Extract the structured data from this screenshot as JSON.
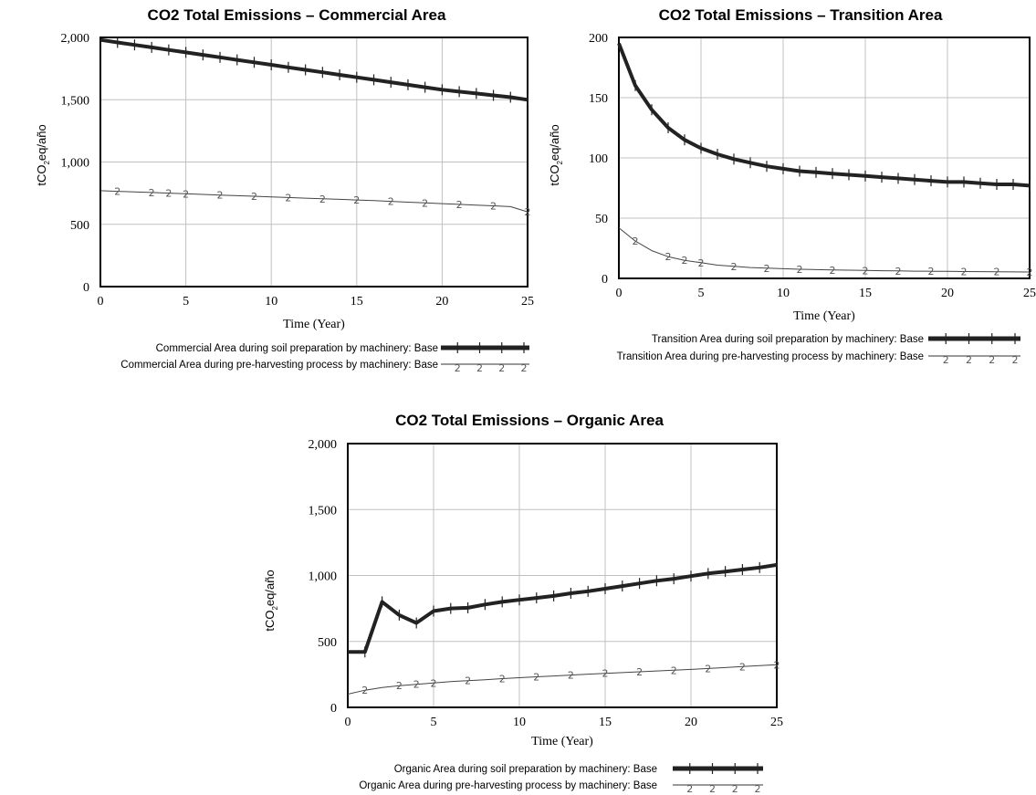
{
  "chart_data": [
    {
      "type": "line",
      "title": "CO2 Total Emissions – Commercial Area",
      "xlabel": "Time (Year)",
      "ylabel": "tCO2eq/año",
      "xlim": [
        0,
        25
      ],
      "ylim": [
        0,
        2000
      ],
      "xticks": [
        "0",
        "5",
        "10",
        "15",
        "20",
        "25"
      ],
      "yticks": [
        "0",
        "500",
        "1,000",
        "1,500",
        "2,000"
      ],
      "grid": true,
      "legend_position": "bottom",
      "x": [
        0,
        1,
        2,
        3,
        4,
        5,
        6,
        7,
        8,
        9,
        10,
        11,
        12,
        13,
        14,
        15,
        16,
        17,
        18,
        19,
        20,
        21,
        22,
        23,
        24,
        25
      ],
      "series": [
        {
          "name": "Commercial Area during soil preparation by machinery: Base",
          "style": "thick-black-cross",
          "values": [
            1980,
            1960,
            1940,
            1920,
            1900,
            1880,
            1860,
            1840,
            1820,
            1800,
            1780,
            1760,
            1740,
            1720,
            1700,
            1680,
            1660,
            1640,
            1620,
            1600,
            1580,
            1565,
            1550,
            1535,
            1520,
            1500
          ]
        },
        {
          "name": "Commercial Area during pre-harvesting process by machinery: Base",
          "style": "thin-gray-2",
          "values": [
            770,
            765,
            760,
            755,
            750,
            745,
            740,
            735,
            730,
            725,
            720,
            715,
            710,
            705,
            700,
            695,
            690,
            684,
            678,
            672,
            666,
            660,
            654,
            648,
            642,
            600
          ]
        }
      ]
    },
    {
      "type": "line",
      "title": "CO2 Total Emissions – Transition Area",
      "xlabel": "Time (Year)",
      "ylabel": "tCO2eq/año",
      "xlim": [
        0,
        25
      ],
      "ylim": [
        0,
        200
      ],
      "xticks": [
        "0",
        "5",
        "10",
        "15",
        "20",
        "25"
      ],
      "yticks": [
        "0",
        "50",
        "100",
        "150",
        "200"
      ],
      "grid": true,
      "legend_position": "bottom",
      "x": [
        0,
        1,
        2,
        3,
        4,
        5,
        6,
        7,
        8,
        9,
        10,
        11,
        12,
        13,
        14,
        15,
        16,
        17,
        18,
        19,
        20,
        21,
        22,
        23,
        24,
        25
      ],
      "series": [
        {
          "name": "Transition Area during soil preparation by machinery: Base",
          "style": "thick-black-cross",
          "values": [
            195,
            160,
            140,
            125,
            115,
            108,
            103,
            99,
            96,
            93,
            91,
            89,
            88,
            87,
            86,
            85,
            84,
            83,
            82,
            81,
            80,
            80,
            79,
            78,
            78,
            77
          ]
        },
        {
          "name": "Transition Area during pre-harvesting process by machinery: Base",
          "style": "thin-gray-2",
          "values": [
            42,
            31,
            23,
            18,
            15,
            13,
            11,
            10,
            9,
            8.5,
            8,
            7.6,
            7.3,
            7,
            6.8,
            6.6,
            6.4,
            6.2,
            6,
            5.9,
            5.8,
            5.7,
            5.6,
            5.5,
            5.4,
            5.3
          ]
        }
      ]
    },
    {
      "type": "line",
      "title": "CO2 Total Emissions – Organic Area",
      "xlabel": "Time (Year)",
      "ylabel": "tCO2eq/año",
      "xlim": [
        0,
        25
      ],
      "ylim": [
        0,
        2000
      ],
      "xticks": [
        "0",
        "5",
        "10",
        "15",
        "20",
        "25"
      ],
      "yticks": [
        "0",
        "500",
        "1,000",
        "1,500",
        "2,000"
      ],
      "grid": true,
      "legend_position": "bottom",
      "x": [
        0,
        1,
        2,
        3,
        4,
        5,
        6,
        7,
        8,
        9,
        10,
        11,
        12,
        13,
        14,
        15,
        16,
        17,
        18,
        19,
        20,
        21,
        22,
        23,
        24,
        25
      ],
      "series": [
        {
          "name": "Organic Area during soil preparation by machinery: Base",
          "style": "thick-black-cross",
          "values": [
            420,
            420,
            800,
            700,
            640,
            730,
            750,
            755,
            780,
            800,
            815,
            830,
            845,
            865,
            880,
            900,
            920,
            940,
            960,
            975,
            995,
            1015,
            1030,
            1045,
            1060,
            1080
          ]
        },
        {
          "name": "Organic Area during pre-harvesting process by machinery: Base",
          "style": "thin-gray-2",
          "values": [
            100,
            130,
            150,
            165,
            175,
            185,
            195,
            203,
            210,
            218,
            225,
            232,
            238,
            245,
            252,
            258,
            264,
            270,
            276,
            282,
            288,
            295,
            302,
            309,
            316,
            323
          ]
        }
      ]
    }
  ]
}
